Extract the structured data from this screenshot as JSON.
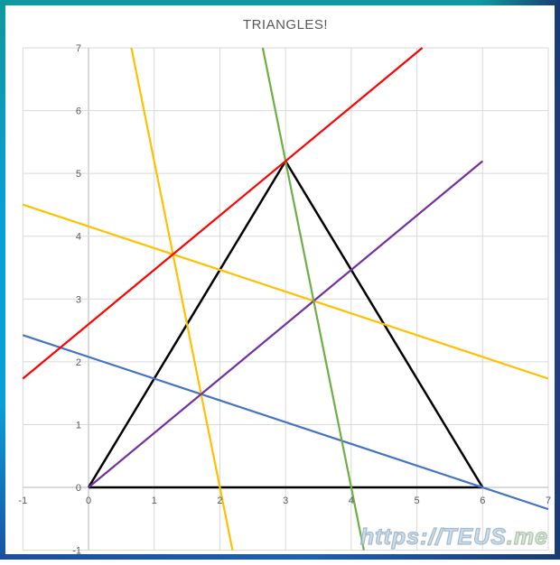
{
  "theme": {
    "background": "#FFFFFF",
    "grid_color": "#D9D9D9",
    "axis_color": "#B5B5B5",
    "tick_label_color": "#595959",
    "title_color": "#595959",
    "frame_teal": "#0E98A0",
    "frame_cyan": "#09A0DA",
    "frame_blue": "#1A62AE",
    "frame_navy": "#1A3A72",
    "watermark_blue": "#B9D6EC",
    "watermark_green": "#C9DFC9",
    "watermark_outline": "#93A9BD"
  },
  "watermark": {
    "prefix": "https://TEUS",
    "suffix": ".me"
  },
  "chart_data": {
    "type": "line",
    "title": "TRIANGLES!",
    "xlabel": "",
    "ylabel": "",
    "xlim": [
      -1,
      7
    ],
    "ylim": [
      -1,
      7
    ],
    "x_ticks": [
      -1,
      0,
      1,
      2,
      3,
      4,
      5,
      6,
      7
    ],
    "y_ticks": [
      -1,
      0,
      1,
      2,
      3,
      4,
      5,
      6,
      7
    ],
    "grid": true,
    "legend": "none",
    "description": "Equilateral triangle with vertices (0,0), (6,0), (3,5.196) crossed by six straight cevian/parallel lines",
    "series": [
      {
        "name": "black-triangle",
        "color": "#000000",
        "width": 2.5,
        "points": [
          [
            0,
            0
          ],
          [
            6,
            0
          ],
          [
            3,
            5.1962
          ],
          [
            0,
            0
          ]
        ]
      },
      {
        "name": "blue-line",
        "color": "#4472C4",
        "width": 2.2,
        "points": [
          [
            -1,
            2.4249
          ],
          [
            7,
            -0.3464
          ]
        ]
      },
      {
        "name": "gold-line-shallow",
        "color": "#FFC000",
        "width": 2.2,
        "points": [
          [
            -1,
            4.5033
          ],
          [
            7,
            1.7321
          ]
        ]
      },
      {
        "name": "gold-line-steep",
        "color": "#FFC000",
        "width": 2.2,
        "points": [
          [
            0.6528,
            7
          ],
          [
            2.1925,
            -1
          ]
        ]
      },
      {
        "name": "purple-line",
        "color": "#7030A0",
        "width": 2.2,
        "points": [
          [
            0,
            0
          ],
          [
            6,
            5.1962
          ]
        ]
      },
      {
        "name": "green-line",
        "color": "#70AD47",
        "width": 2.2,
        "points": [
          [
            2.6528,
            7
          ],
          [
            4.1925,
            -1
          ]
        ]
      },
      {
        "name": "red-line",
        "color": "#FF0000",
        "width": 2.2,
        "points": [
          [
            -1,
            1.7321
          ],
          [
            5.0829,
            7
          ]
        ]
      }
    ]
  }
}
